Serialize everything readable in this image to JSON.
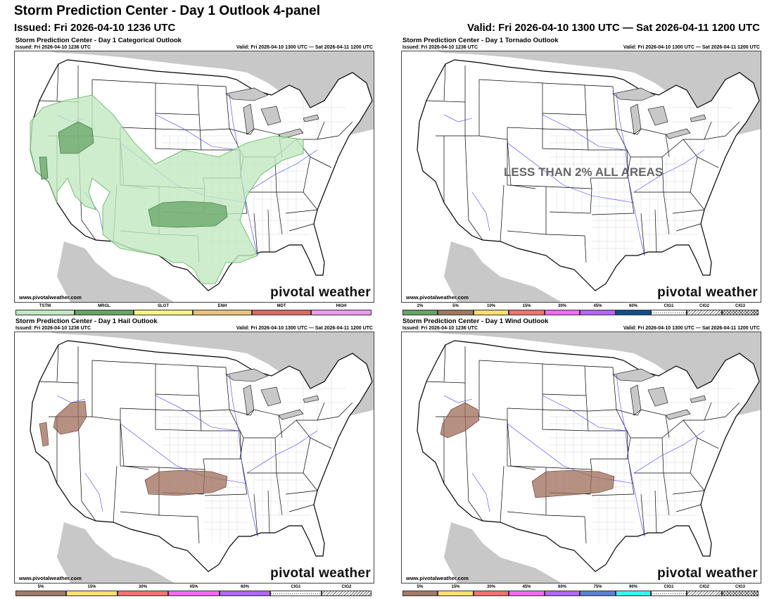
{
  "header": {
    "title": "Storm Prediction Center - Day 1 Outlook 4-panel",
    "issued": "Issued: Fri 2026-04-10 1236 UTC",
    "valid": "Valid: Fri 2026-04-10 1300 UTC — Sat 2026-04-11 1200 UTC"
  },
  "panels": {
    "categorical": {
      "title": "Storm Prediction Center - Day 1 Categorical Outlook",
      "issued": "Issued: Fri 2026-04-10 1236 UTC",
      "valid": "Valid: Fri 2026-04-10 1300 UTC — Sat 2026-04-11 1200 UTC",
      "site": "www.pivotalweather.com",
      "brand": "pivotal weather",
      "legend": [
        {
          "label": "TSTM",
          "color": "#c1e9c1"
        },
        {
          "label": "MRGL",
          "color": "#66a366"
        },
        {
          "label": "SLGT",
          "color": "#f6f67f"
        },
        {
          "label": "ENH",
          "color": "#e6c27a"
        },
        {
          "label": "MDT",
          "color": "#e06666"
        },
        {
          "label": "HIGH",
          "color": "#ee99ee"
        }
      ]
    },
    "tornado": {
      "title": "Storm Prediction Center - Day 1 Tornado Outlook",
      "issued": "Issued: Fri 2026-04-10 1236 UTC",
      "valid": "Valid: Fri 2026-04-10 1300 UTC — Sat 2026-04-11 1200 UTC",
      "site": "www.pivotalweather.com",
      "brand": "pivotal weather",
      "note": "LESS THAN 2% ALL AREAS",
      "legend": [
        {
          "label": "2%",
          "color": "#66a366"
        },
        {
          "label": "5%",
          "color": "#9d7a5f"
        },
        {
          "label": "10%",
          "color": "#ffe066"
        },
        {
          "label": "15%",
          "color": "#ff7070"
        },
        {
          "label": "30%",
          "color": "#ff66ff"
        },
        {
          "label": "45%",
          "color": "#b266ff"
        },
        {
          "label": "60%",
          "color": "#104e8b"
        },
        {
          "label": "CIG1",
          "color": "#ffffff"
        },
        {
          "label": "CIG2",
          "color": "#ffffff"
        },
        {
          "label": "CIG3",
          "color": "#ffffff"
        }
      ]
    },
    "hail": {
      "title": "Storm Prediction Center - Day 1 Hail Outlook",
      "issued": "Issued: Fri 2026-04-10 1236 UTC",
      "valid": "Valid: Fri 2026-04-10 1300 UTC — Sat 2026-04-11 1200 UTC",
      "site": "www.pivotalweather.com",
      "brand": "pivotal weather",
      "legend": [
        {
          "label": "5%",
          "color": "#a27a6a"
        },
        {
          "label": "15%",
          "color": "#ffe066"
        },
        {
          "label": "30%",
          "color": "#ff7070"
        },
        {
          "label": "45%",
          "color": "#ff66ff"
        },
        {
          "label": "60%",
          "color": "#b266ff"
        },
        {
          "label": "CIG1",
          "color": "#ffffff"
        },
        {
          "label": "CIG2",
          "color": "#ffffff"
        }
      ]
    },
    "wind": {
      "title": "Storm Prediction Center - Day 1 Wind Outlook",
      "issued": "Issued: Fri 2026-04-10 1236 UTC",
      "valid": "Valid: Fri 2026-04-10 1300 UTC — Sat 2026-04-11 1200 UTC",
      "site": "www.pivotalweather.com",
      "brand": "pivotal weather",
      "legend": [
        {
          "label": "5%",
          "color": "#a27a6a"
        },
        {
          "label": "15%",
          "color": "#ffe066"
        },
        {
          "label": "30%",
          "color": "#ff7070"
        },
        {
          "label": "45%",
          "color": "#ff66ff"
        },
        {
          "label": "60%",
          "color": "#b266ff"
        },
        {
          "label": "75%",
          "color": "#5a7fd6"
        },
        {
          "label": "90%",
          "color": "#33ffee"
        },
        {
          "label": "CIG1",
          "color": "#ffffff"
        },
        {
          "label": "CIG2",
          "color": "#ffffff"
        },
        {
          "label": "CIG3",
          "color": "#ffffff"
        }
      ]
    }
  },
  "colors": {
    "tstm_fill": "#c1e9c1",
    "mrgl_fill": "#66a366",
    "prob5_fill": "#9d6b55",
    "land_outside": "#c8c8c8",
    "ocean": "#ffffff",
    "river": "#3b3bff"
  }
}
